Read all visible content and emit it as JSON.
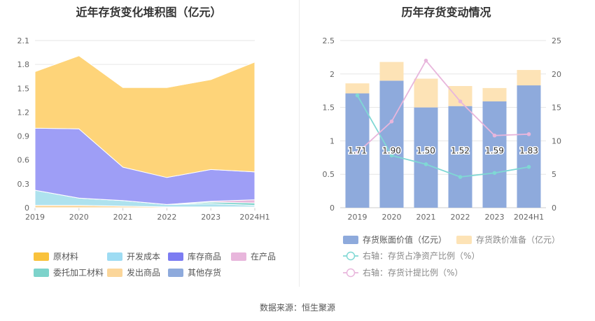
{
  "footer": {
    "source": "数据来源：恒生聚源"
  },
  "chart_data": [
    {
      "type": "area",
      "title": "近年存货变化堆积图（亿元）",
      "x": [
        "2019",
        "2020",
        "2021",
        "2022",
        "2023",
        "2024H1"
      ],
      "yticks": [
        "0",
        "0.3",
        "0.6",
        "0.9",
        "1.2",
        "1.5",
        "1.8",
        "2.1"
      ],
      "ylim": [
        0,
        2.1
      ],
      "stacked": true,
      "legend_position": "bottom",
      "series": [
        {
          "name": "发出商品",
          "color": "#fbd69a",
          "values": [
            0.03,
            0.03,
            0.02,
            0.01,
            0.01,
            0.01
          ]
        },
        {
          "name": "开发成本",
          "color": "#aee2ee",
          "values": [
            0.19,
            0.09,
            0.07,
            0.03,
            0.04,
            0.02
          ]
        },
        {
          "name": "委托加工材料",
          "color": "#7dd3cb",
          "values": [
            0.0,
            0.0,
            0.0,
            0.0,
            0.02,
            0.03
          ]
        },
        {
          "name": "在产品",
          "color": "#e8b6dc",
          "values": [
            0.0,
            0.0,
            0.0,
            0.0,
            0.01,
            0.04
          ]
        },
        {
          "name": "库存商品",
          "color": "#9e9ef6",
          "values": [
            0.78,
            0.87,
            0.42,
            0.34,
            0.4,
            0.35
          ]
        },
        {
          "name": "原材料",
          "color": "#fed479",
          "values": [
            0.71,
            0.92,
            1.0,
            1.13,
            1.13,
            1.38
          ]
        },
        {
          "name": "其他存货",
          "color": "#8eaadc",
          "values": [
            0.0,
            0.0,
            0.0,
            0.0,
            0.0,
            0.0
          ]
        }
      ],
      "legend": [
        {
          "name": "原材料",
          "color": "#f9c23c"
        },
        {
          "name": "开发成本",
          "color": "#9edcf3"
        },
        {
          "name": "库存商品",
          "color": "#7c7cf2"
        },
        {
          "name": "在产品",
          "color": "#e8b6dc"
        },
        {
          "name": "委托加工材料",
          "color": "#7dd3cb"
        },
        {
          "name": "发出商品",
          "color": "#fbd69a"
        },
        {
          "name": "其他存货",
          "color": "#8eaadc"
        }
      ]
    },
    {
      "type": "bar",
      "title": "历年存货变动情况",
      "categories": [
        "2019",
        "2020",
        "2021",
        "2022",
        "2023",
        "2024H1"
      ],
      "ylim": [
        0,
        2.5
      ],
      "yticks": [
        "0",
        "0.5",
        "1",
        "1.5",
        "2",
        "2.5"
      ],
      "y2lim": [
        0,
        25
      ],
      "y2ticks": [
        "0",
        "5",
        "10",
        "15",
        "20",
        "25"
      ],
      "stacked": true,
      "legend_position": "bottom",
      "series": [
        {
          "name": "存货账面价值（亿元）",
          "color": "#8eaadc",
          "values": [
            1.71,
            1.9,
            1.5,
            1.52,
            1.59,
            1.83
          ],
          "labels": [
            "1.71",
            "1.90",
            "1.50",
            "1.52",
            "1.59",
            "1.83"
          ]
        },
        {
          "name": "存货跌价准备（亿元）",
          "color": "#fde3b6",
          "values": [
            0.15,
            0.28,
            0.43,
            0.3,
            0.2,
            0.23
          ]
        }
      ],
      "lines": [
        {
          "name": "右轴：存货占净资产比例（%）",
          "color": "#7fd8d4",
          "axis": "right",
          "values": [
            16.8,
            7.8,
            6.5,
            4.6,
            5.2,
            6.1
          ]
        },
        {
          "name": "右轴：存货计提比例（%）",
          "color": "#e8b6dc",
          "axis": "right",
          "values": [
            8.2,
            12.9,
            22.0,
            15.9,
            10.8,
            11.0
          ]
        }
      ]
    }
  ]
}
